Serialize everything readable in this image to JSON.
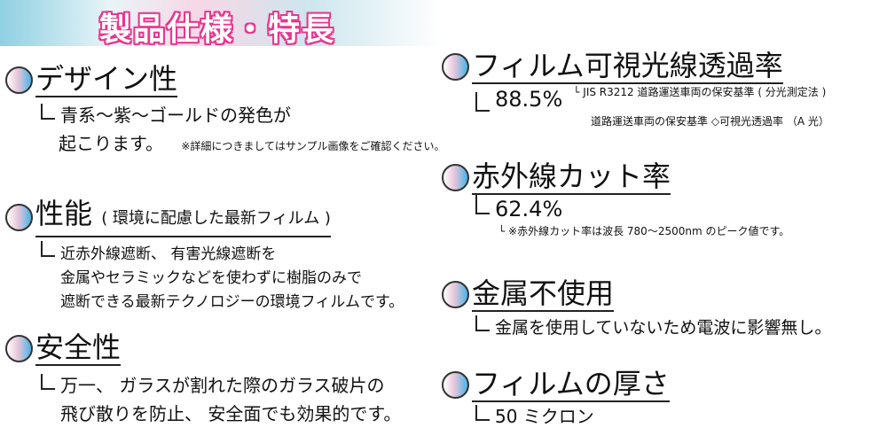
{
  "banner": {
    "title": "製品仕様・特長"
  },
  "left": [
    {
      "title": "デザイン性",
      "lines": [
        "青系〜紫〜ゴールドの発色が",
        "起こります。"
      ],
      "note": "※詳細につきましてはサンプル画像をご確認ください。"
    },
    {
      "title": "性能",
      "subtitle": "( 環境に配慮した最新フィルム )",
      "lines": [
        "近赤外線遮断、 有害光線遮断を",
        "金属やセラミックなどを使わずに樹脂のみで",
        "遮断できる最新テクノロジーの環境フィルムです。"
      ]
    },
    {
      "title": "安全性",
      "lines": [
        "万一、 ガラスが割れた際のガラス破片の",
        "飛び散りを防止、 安全面でも効果的です。"
      ]
    }
  ],
  "right": [
    {
      "title": "フィルム可視光線透過率",
      "value": "88.5%",
      "notes": [
        "JIS R3212 道路運送車両の保安基準 ( 分光測定法 )",
        "道路運送車両の保安基準 ◇可視光透過率 （A 光）"
      ]
    },
    {
      "title": "赤外線カット率",
      "value": "62.4%",
      "notes": [
        "※赤外線カット率は波長 780〜2500nm のピーク値です。"
      ]
    },
    {
      "title": "金属不使用",
      "value": "金属を使用していないため電波に影響無し。"
    },
    {
      "title": "フィルムの厚さ",
      "value": "50 ミクロン"
    }
  ]
}
